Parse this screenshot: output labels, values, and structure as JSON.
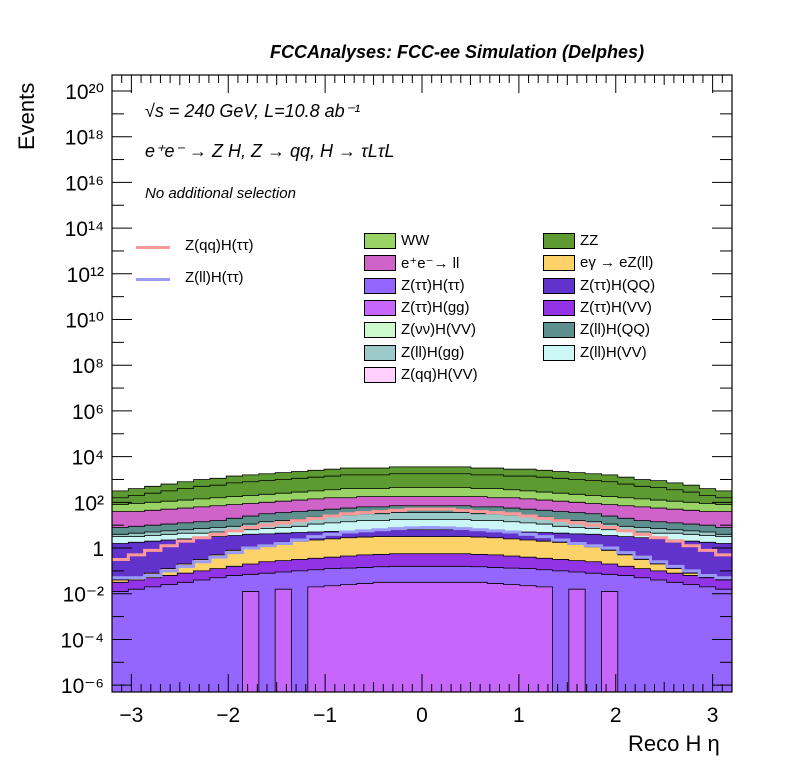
{
  "header": {
    "title": "FCCAnalyses: FCC-ee Simulation (Delphes)"
  },
  "annotations": {
    "energy": "√s = 240 GeV, L=10.8 ab⁻¹",
    "process": "e⁺e⁻ → Z H, Z → qq, H → τLτL",
    "selection": "No additional selection"
  },
  "chart_data": {
    "type": "histogram",
    "xlabel": "Reco H η",
    "ylabel": "Events",
    "xlim": [
      -3.2,
      3.2
    ],
    "ylim_log10": [
      -6.3,
      20.7
    ],
    "yscale": "log",
    "x_ticks": [
      -3,
      -2,
      -1,
      0,
      1,
      2,
      3
    ],
    "x_tick_labels": [
      "−3",
      "−2",
      "−1",
      "0",
      "1",
      "2",
      "3"
    ],
    "y_ticks_log10": [
      -6,
      -4,
      -2,
      0,
      2,
      4,
      6,
      8,
      10,
      12,
      14,
      16,
      18,
      20
    ],
    "y_tick_labels": [
      "10⁻⁶",
      "10⁻⁴",
      "10⁻²",
      "1",
      "10²",
      "10⁴",
      "10⁶",
      "10⁸",
      "10¹⁰",
      "10¹²",
      "10¹⁴",
      "10¹⁶",
      "10¹⁸",
      "10²⁰"
    ],
    "stack_top_log10": [
      2.5,
      2.6,
      2.7,
      2.8,
      2.9,
      3.0,
      3.05,
      3.15,
      3.2,
      3.25,
      3.3,
      3.35,
      3.4,
      3.45,
      3.5,
      3.5,
      3.5,
      3.55,
      3.55,
      3.55,
      3.55,
      3.55,
      3.5,
      3.5,
      3.45,
      3.45,
      3.4,
      3.35,
      3.3,
      3.25,
      3.2,
      3.1,
      3.0,
      2.95,
      2.85,
      2.75,
      2.6,
      2.5
    ],
    "stack": [
      {
        "name": "ZZ",
        "color": "#5e9a32",
        "log10": [
          2.2,
          2.3,
          2.4,
          2.5,
          2.6,
          2.7,
          2.75,
          2.85,
          2.9,
          2.95,
          3.0,
          3.05,
          3.1,
          3.15,
          3.2,
          3.2,
          3.2,
          3.25,
          3.25,
          3.25,
          3.25,
          3.25,
          3.2,
          3.2,
          3.15,
          3.15,
          3.1,
          3.05,
          3.0,
          2.95,
          2.9,
          2.8,
          2.7,
          2.65,
          2.55,
          2.45,
          2.3,
          2.2
        ]
      },
      {
        "name": "WW",
        "color": "#99d365",
        "log10": [
          1.9,
          1.95,
          2.0,
          2.05,
          2.1,
          2.15,
          2.2,
          2.25,
          2.3,
          2.35,
          2.4,
          2.45,
          2.5,
          2.55,
          2.6,
          2.6,
          2.6,
          2.65,
          2.65,
          2.65,
          2.65,
          2.65,
          2.6,
          2.6,
          2.55,
          2.5,
          2.45,
          2.4,
          2.35,
          2.3,
          2.25,
          2.2,
          2.15,
          2.1,
          2.05,
          2.0,
          1.95,
          1.9
        ]
      },
      {
        "name": "e⁺e⁻→ ll",
        "color": "#cf63c9",
        "log10": [
          1.6,
          1.6,
          1.65,
          1.7,
          1.75,
          1.8,
          1.85,
          1.9,
          1.95,
          2.0,
          2.05,
          2.1,
          2.15,
          2.2,
          2.2,
          2.25,
          2.25,
          2.25,
          2.25,
          2.25,
          2.25,
          2.25,
          2.25,
          2.2,
          2.2,
          2.15,
          2.1,
          2.05,
          2.0,
          1.95,
          1.9,
          1.85,
          1.8,
          1.75,
          1.7,
          1.65,
          1.6,
          1.6
        ]
      },
      {
        "name": "Z(ll)H(QQ)",
        "color": "#5e8f8f",
        "log10": [
          0.9,
          0.95,
          1.0,
          1.05,
          1.1,
          1.15,
          1.2,
          1.3,
          1.4,
          1.5,
          1.55,
          1.6,
          1.65,
          1.7,
          1.75,
          1.8,
          1.8,
          1.85,
          1.85,
          1.85,
          1.85,
          1.85,
          1.8,
          1.8,
          1.75,
          1.7,
          1.65,
          1.6,
          1.55,
          1.5,
          1.4,
          1.3,
          1.2,
          1.15,
          1.1,
          1.05,
          1.0,
          0.9
        ]
      },
      {
        "name": "Z(ll)H(gg)",
        "color": "#9ccaca",
        "log10": [
          0.6,
          0.65,
          0.7,
          0.75,
          0.8,
          0.85,
          0.9,
          0.95,
          1.05,
          1.15,
          1.2,
          1.25,
          1.35,
          1.4,
          1.45,
          1.5,
          1.5,
          1.55,
          1.55,
          1.55,
          1.55,
          1.55,
          1.5,
          1.5,
          1.45,
          1.4,
          1.35,
          1.25,
          1.2,
          1.15,
          1.05,
          0.95,
          0.9,
          0.85,
          0.8,
          0.75,
          0.7,
          0.6
        ]
      },
      {
        "name": "Z(ll)H(VV)",
        "color": "#ccf7f7",
        "log10": [
          0.5,
          0.5,
          0.55,
          0.6,
          0.65,
          0.65,
          0.7,
          0.75,
          0.8,
          0.85,
          0.9,
          0.95,
          1.05,
          1.1,
          1.15,
          1.2,
          1.2,
          1.25,
          1.25,
          1.25,
          1.25,
          1.25,
          1.2,
          1.2,
          1.15,
          1.1,
          1.05,
          0.95,
          0.9,
          0.85,
          0.8,
          0.75,
          0.7,
          0.65,
          0.65,
          0.6,
          0.55,
          0.5
        ]
      },
      {
        "name": "Z(ττ)H(QQ)",
        "color": "#6232cc",
        "log10": [
          0.2,
          0.25,
          0.3,
          0.35,
          0.4,
          0.45,
          0.5,
          0.55,
          0.6,
          0.62,
          0.65,
          0.68,
          0.7,
          0.72,
          0.75,
          0.78,
          0.8,
          0.8,
          0.8,
          0.8,
          0.8,
          0.8,
          0.78,
          0.75,
          0.72,
          0.7,
          0.68,
          0.65,
          0.62,
          0.6,
          0.55,
          0.5,
          0.45,
          0.4,
          0.35,
          0.3,
          0.25,
          0.2
        ]
      },
      {
        "name": "eγ → eZ(ll)",
        "color": "#fcd269",
        "log10": [
          -1.4,
          -1.3,
          -1.1,
          -0.9,
          -0.7,
          -0.5,
          -0.3,
          -0.1,
          0.05,
          0.15,
          0.25,
          0.3,
          0.35,
          0.4,
          0.45,
          0.48,
          0.5,
          0.5,
          0.5,
          0.5,
          0.5,
          0.5,
          0.48,
          0.45,
          0.4,
          0.35,
          0.3,
          0.25,
          0.15,
          0.05,
          -0.1,
          -0.3,
          -0.5,
          -0.7,
          -0.9,
          -1.1,
          -1.3,
          -1.4
        ]
      },
      {
        "name": "Z(ττ)H(VV)",
        "color": "#9233e6",
        "log10": [
          -1.5,
          -1.4,
          -1.3,
          -1.2,
          -1.1,
          -1.0,
          -0.9,
          -0.8,
          -0.7,
          -0.6,
          -0.55,
          -0.5,
          -0.45,
          -0.4,
          -0.35,
          -0.3,
          -0.28,
          -0.25,
          -0.25,
          -0.25,
          -0.25,
          -0.25,
          -0.28,
          -0.3,
          -0.35,
          -0.4,
          -0.45,
          -0.5,
          -0.55,
          -0.6,
          -0.7,
          -0.8,
          -0.9,
          -1.0,
          -1.1,
          -1.2,
          -1.3,
          -1.4
        ]
      },
      {
        "name": "Z(ττ)H(ττ)",
        "color": "#9565ff",
        "log10": [
          -1.9,
          -1.8,
          -1.7,
          -1.6,
          -1.5,
          -1.4,
          -1.3,
          -1.2,
          -1.15,
          -1.1,
          -1.05,
          -1.0,
          -0.95,
          -0.9,
          -0.88,
          -0.85,
          -0.82,
          -0.8,
          -0.8,
          -0.8,
          -0.8,
          -0.8,
          -0.82,
          -0.85,
          -0.88,
          -0.9,
          -0.95,
          -1.0,
          -1.05,
          -1.1,
          -1.15,
          -1.2,
          -1.3,
          -1.4,
          -1.5,
          -1.6,
          -1.7,
          -1.8
        ]
      },
      {
        "name": "Z(ττ)H(gg)",
        "color": "#c766fa",
        "log10": [
          null,
          null,
          null,
          null,
          null,
          null,
          null,
          null,
          -1.9,
          -7,
          -1.8,
          -7,
          -1.7,
          -1.65,
          -1.6,
          -1.55,
          -1.5,
          -1.5,
          -1.5,
          -1.5,
          -1.5,
          -1.5,
          -1.5,
          -1.55,
          -1.6,
          -1.65,
          -1.7,
          -7,
          -1.8,
          -7,
          -1.9,
          null,
          null,
          null,
          null,
          null,
          null,
          null
        ]
      },
      {
        "name": "Z(νν)H(VV)",
        "color": "#cdfacd",
        "log10": []
      },
      {
        "name": "Z(qq)H(VV)",
        "color": "#ffcffe",
        "log10": []
      }
    ],
    "overlays": [
      {
        "name": "Z(qq)H(ττ)",
        "color": "#fd9999",
        "log10": [
          -0.5,
          -0.3,
          -0.1,
          0.1,
          0.3,
          0.45,
          0.6,
          0.75,
          0.9,
          1.0,
          1.1,
          1.2,
          1.3,
          1.4,
          1.5,
          1.55,
          1.6,
          1.65,
          1.7,
          1.7,
          1.7,
          1.65,
          1.6,
          1.55,
          1.5,
          1.4,
          1.3,
          1.2,
          1.1,
          1.0,
          0.9,
          0.75,
          0.6,
          0.45,
          0.3,
          0.1,
          -0.1,
          -0.3
        ]
      },
      {
        "name": "Z(ll)H(ττ)",
        "color": "#9a9af8",
        "log10": [
          -1.3,
          -1.3,
          -1.2,
          -1.0,
          -0.8,
          -0.6,
          -0.4,
          -0.2,
          0.0,
          0.1,
          0.2,
          0.35,
          0.5,
          0.6,
          0.7,
          0.75,
          0.8,
          0.85,
          0.88,
          0.9,
          0.88,
          0.85,
          0.8,
          0.75,
          0.7,
          0.6,
          0.5,
          0.35,
          0.2,
          0.1,
          0.0,
          -0.2,
          -0.4,
          -0.6,
          -0.8,
          -1.0,
          -1.2,
          -1.3
        ]
      }
    ],
    "legend": {
      "placement": "upper-right",
      "lines": [
        "Z(qq)H(ττ)",
        "Z(ll)H(ττ)"
      ],
      "fills": [
        "WW",
        "ZZ",
        "e⁺e⁻→ ll",
        "eγ → eZ(ll)",
        "Z(ττ)H(ττ)",
        "Z(ττ)H(QQ)",
        "Z(ττ)H(gg)",
        "Z(ττ)H(VV)",
        "Z(νν)H(VV)",
        "Z(ll)H(QQ)",
        "Z(ll)H(gg)",
        "Z(ll)H(VV)",
        "Z(qq)H(VV)"
      ]
    }
  }
}
